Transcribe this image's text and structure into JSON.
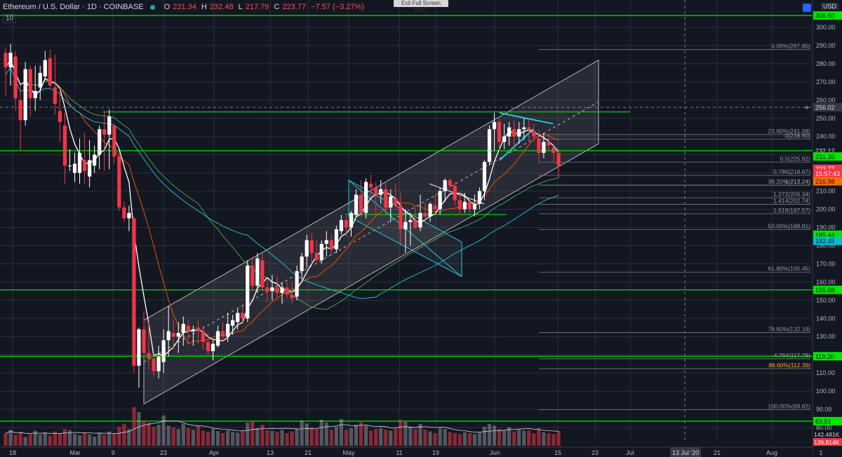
{
  "header": {
    "symbol": "Ethereum / U.S. Dollar",
    "interval": "1D",
    "exchange": "COINBASE",
    "o_label": "O",
    "o": "231.34",
    "h_label": "H",
    "h": "232.48",
    "l_label": "L",
    "l": "217.79",
    "c_label": "C",
    "c": "223.77",
    "change": "−7.57 (−3.27%)"
  },
  "indicator_label": "10",
  "exit_fullscreen": "Exit Full Screen (ESC)",
  "currency": "USD",
  "chart_data": {
    "type": "candlestick",
    "ylim": [
      78,
      312
    ],
    "volume_panel": true,
    "candles": [
      [
        286,
        289,
        262,
        278
      ],
      [
        278,
        291,
        268,
        286
      ],
      [
        284,
        287,
        254,
        261
      ],
      [
        260,
        268,
        232,
        249
      ],
      [
        249,
        281,
        246,
        277
      ],
      [
        277,
        279,
        251,
        261
      ],
      [
        261,
        279,
        254,
        265
      ],
      [
        267,
        279,
        260,
        275
      ],
      [
        273,
        287,
        271,
        282
      ],
      [
        283,
        288,
        266,
        268
      ],
      [
        267,
        285,
        252,
        258
      ],
      [
        254,
        267,
        237,
        248
      ],
      [
        246,
        253,
        214,
        224
      ],
      [
        224,
        233,
        221,
        224
      ],
      [
        220,
        231,
        215,
        225
      ],
      [
        220,
        239,
        214,
        231
      ],
      [
        227,
        242,
        214,
        221
      ],
      [
        218,
        238,
        212,
        227
      ],
      [
        224,
        235,
        220,
        230
      ],
      [
        230,
        246,
        222,
        244
      ],
      [
        244,
        254,
        221,
        241
      ],
      [
        241,
        255,
        222,
        251
      ],
      [
        246,
        247,
        225,
        229
      ],
      [
        229,
        232,
        199,
        201
      ],
      [
        201,
        204,
        193,
        195
      ],
      [
        195,
        202,
        188,
        198
      ],
      [
        195,
        196,
        110,
        114
      ],
      [
        114,
        135,
        102,
        134
      ],
      [
        134,
        144,
        119,
        121
      ],
      [
        121,
        139,
        112,
        118
      ],
      [
        118,
        120,
        108,
        111
      ],
      [
        111,
        125,
        107,
        119
      ],
      [
        116,
        134,
        110,
        128
      ],
      [
        128,
        147,
        119,
        133
      ],
      [
        132,
        139,
        123,
        130
      ],
      [
        130,
        138,
        121,
        132
      ],
      [
        132,
        141,
        125,
        137
      ],
      [
        136,
        139,
        126,
        133
      ],
      [
        133,
        136,
        125,
        134
      ],
      [
        135,
        139,
        126,
        133
      ],
      [
        133,
        136,
        123,
        127
      ],
      [
        127,
        133,
        120,
        122
      ],
      [
        122,
        128,
        117,
        126
      ],
      [
        125,
        136,
        124,
        133
      ],
      [
        133,
        138,
        127,
        130
      ],
      [
        130,
        143,
        127,
        137
      ],
      [
        136,
        142,
        131,
        139
      ],
      [
        138,
        145,
        134,
        143
      ],
      [
        143,
        148,
        137,
        140
      ],
      [
        140,
        172,
        138,
        169
      ],
      [
        169,
        174,
        155,
        158
      ],
      [
        158,
        176,
        154,
        173
      ],
      [
        172,
        176,
        155,
        157
      ],
      [
        157,
        161,
        149,
        155
      ],
      [
        155,
        164,
        150,
        157
      ],
      [
        157,
        163,
        151,
        154
      ],
      [
        154,
        160,
        148,
        157
      ],
      [
        157,
        160,
        151,
        153
      ],
      [
        153,
        160,
        148,
        151
      ],
      [
        152,
        169,
        150,
        166
      ],
      [
        166,
        176,
        162,
        174
      ],
      [
        174,
        186,
        168,
        183
      ],
      [
        183,
        187,
        170,
        176
      ],
      [
        176,
        183,
        170,
        172
      ],
      [
        172,
        183,
        170,
        181
      ],
      [
        181,
        188,
        174,
        183
      ],
      [
        183,
        186,
        175,
        178
      ],
      [
        178,
        191,
        176,
        189
      ],
      [
        188,
        197,
        186,
        194
      ],
      [
        194,
        196,
        185,
        190
      ],
      [
        190,
        199,
        185,
        198
      ],
      [
        197,
        211,
        196,
        208
      ],
      [
        208,
        216,
        196,
        198
      ],
      [
        198,
        217,
        195,
        215
      ],
      [
        214,
        219,
        207,
        212
      ],
      [
        212,
        215,
        197,
        208
      ],
      [
        208,
        216,
        203,
        211
      ],
      [
        211,
        215,
        197,
        201
      ],
      [
        201,
        211,
        193,
        207
      ],
      [
        206,
        214,
        200,
        202
      ],
      [
        202,
        209,
        180,
        189
      ],
      [
        189,
        200,
        176,
        193
      ],
      [
        193,
        198,
        180,
        194
      ],
      [
        194,
        201,
        189,
        190
      ],
      [
        190,
        208,
        188,
        198
      ],
      [
        198,
        204,
        193,
        196
      ],
      [
        196,
        204,
        193,
        203
      ],
      [
        202,
        208,
        197,
        200
      ],
      [
        200,
        212,
        197,
        210
      ],
      [
        210,
        217,
        204,
        216
      ],
      [
        216,
        217,
        209,
        213
      ],
      [
        213,
        215,
        202,
        205
      ],
      [
        205,
        209,
        197,
        200
      ],
      [
        200,
        209,
        198,
        204
      ],
      [
        204,
        206,
        198,
        200
      ],
      [
        200,
        208,
        196,
        203
      ],
      [
        203,
        212,
        200,
        210
      ],
      [
        210,
        227,
        205,
        226
      ],
      [
        226,
        246,
        224,
        244
      ],
      [
        244,
        253,
        232,
        248
      ],
      [
        248,
        250,
        232,
        237
      ],
      [
        237,
        247,
        233,
        240
      ],
      [
        240,
        248,
        235,
        245
      ],
      [
        244,
        249,
        233,
        240
      ],
      [
        240,
        248,
        236,
        244
      ],
      [
        244,
        250,
        238,
        245
      ],
      [
        245,
        249,
        237,
        244
      ],
      [
        243,
        247,
        237,
        240
      ],
      [
        239,
        244,
        226,
        231
      ],
      [
        231,
        242,
        228,
        237
      ],
      [
        237,
        241,
        232,
        235
      ],
      [
        234,
        236,
        226,
        231
      ],
      [
        231,
        232,
        217,
        224
      ]
    ],
    "volume": [
      0.3,
      0.38,
      0.26,
      0.33,
      0.21,
      0.28,
      0.36,
      0.27,
      0.32,
      0.24,
      0.34,
      0.3,
      0.4,
      0.37,
      0.28,
      0.25,
      0.31,
      0.27,
      0.22,
      0.3,
      0.26,
      0.34,
      0.3,
      0.45,
      0.52,
      0.4,
      0.92,
      0.8,
      0.6,
      0.55,
      0.45,
      0.5,
      0.72,
      0.48,
      0.44,
      0.4,
      0.52,
      0.42,
      0.38,
      0.47,
      0.36,
      0.33,
      0.4,
      0.35,
      0.3,
      0.37,
      0.33,
      0.31,
      0.36,
      0.55,
      0.58,
      0.42,
      0.5,
      0.37,
      0.35,
      0.33,
      0.38,
      0.3,
      0.34,
      0.41,
      0.6,
      0.53,
      0.44,
      0.4,
      0.62,
      0.55,
      0.38,
      0.45,
      0.64,
      0.38,
      0.42,
      0.5,
      0.56,
      0.48,
      0.36,
      0.4,
      0.42,
      0.38,
      0.36,
      0.41,
      0.62,
      0.57,
      0.45,
      0.4,
      0.52,
      0.38,
      0.34,
      0.3,
      0.42,
      0.4,
      0.33,
      0.3,
      0.28,
      0.32,
      0.3,
      0.28,
      0.31,
      0.45,
      0.52,
      0.48,
      0.4,
      0.36,
      0.44,
      0.34,
      0.38,
      0.36,
      0.37,
      0.3,
      0.42,
      0.32,
      0.3,
      0.28,
      0.36
    ],
    "hlines": [
      {
        "price": 306.5,
        "color": "#00e600",
        "x0": 0
      },
      {
        "price": 253.5,
        "color": "#00e600",
        "x0": 147,
        "x1": 898
      },
      {
        "price": 232.2,
        "color": "#00e600",
        "x0": 0
      },
      {
        "price": 155.68,
        "color": "#00e600",
        "x0": 0
      },
      {
        "price": 119.2,
        "color": "#00e600",
        "x0": 0
      },
      {
        "price": 83.51,
        "color": "#00e600",
        "x0": 0
      },
      {
        "price": 197.1,
        "color": "#00e600",
        "x0": 492,
        "x1": 722
      }
    ],
    "fib_levels": [
      {
        "label": "0.00%(287.80)",
        "price": 287.8,
        "color": "#9598a1"
      },
      {
        "label": "23.60%(241.08)",
        "price": 241.08,
        "color": "#9598a1"
      },
      {
        "label": "0(238.60)",
        "price": 238.6,
        "color": "#9598a1"
      },
      {
        "label": "0.5(225.92)",
        "price": 225.92,
        "color": "#9598a1"
      },
      {
        "label": "0.786(218.67)",
        "price": 218.67,
        "color": "#9598a1"
      },
      {
        "label": "38.20%(213.24)",
        "price": 213.24,
        "color": "#9598a1"
      },
      {
        "label": "1(213.24)",
        "price": 213.24,
        "color": "#9598a1"
      },
      {
        "label": "1.272(206.34)",
        "price": 206.34,
        "color": "#9598a1"
      },
      {
        "label": "1.414(202.74)",
        "price": 202.74,
        "color": "#9598a1"
      },
      {
        "label": "1.618(197.57)",
        "price": 197.57,
        "color": "#9598a1"
      },
      {
        "label": "50.00%(188.81)",
        "price": 188.81,
        "color": "#9598a1"
      },
      {
        "label": "61.80%(165.45)",
        "price": 165.45,
        "color": "#9598a1"
      },
      {
        "label": "78.60%(132.19)",
        "price": 132.19,
        "color": "#9598a1"
      },
      {
        "label": "4.764(117.78)",
        "price": 117.78,
        "color": "#9598a1"
      },
      {
        "label": "88.60%(112.39)",
        "price": 112.39,
        "color": "#f9a825"
      },
      {
        "label": "100.00%(89.82)",
        "price": 89.82,
        "color": "#9598a1"
      }
    ],
    "y_ticks": [
      300,
      290,
      280,
      270,
      260,
      250,
      240,
      230,
      220,
      210,
      200,
      190,
      180,
      170,
      160,
      150,
      140,
      130,
      120,
      110,
      100,
      90,
      80
    ],
    "price_badges": [
      {
        "label": "306.50",
        "price": 306.5,
        "bg": "#00e600",
        "fg": "#131722"
      },
      {
        "label": "256.02",
        "price": 256.02,
        "bg": "#363a45",
        "fg": "#d1d4dc"
      },
      {
        "label": "232.12",
        "price": 232.12,
        "bg": "#131722",
        "fg": "#d1d4dc"
      },
      {
        "label": "231.36",
        "price": 229.0,
        "bg": "#00e600",
        "fg": "#131722"
      },
      {
        "label": "223.77",
        "price": 222.3,
        "bg": "#f23645",
        "fg": "#ffffff"
      },
      {
        "label": "15:57:43",
        "price": 219.7,
        "bg": "#f23645",
        "fg": "#ffffff"
      },
      {
        "label": "216.98",
        "price": 215.4,
        "bg": "#ff6d00",
        "fg": "#131722"
      },
      {
        "label": "185.44",
        "price": 186.0,
        "bg": "#00e600",
        "fg": "#131722"
      },
      {
        "label": "182.45",
        "price": 182.6,
        "bg": "#00bcd4",
        "fg": "#131722"
      },
      {
        "label": "155.68",
        "price": 155.68,
        "bg": "#00e600",
        "fg": "#131722"
      },
      {
        "label": "119.20",
        "price": 119.2,
        "bg": "#00e600",
        "fg": "#131722"
      },
      {
        "label": "83.51",
        "price": 83.51,
        "bg": "#00e600",
        "fg": "#131722"
      }
    ],
    "volume_badges": [
      {
        "label": "142.481K",
        "bg": "#131722",
        "fg": "#d1d4dc"
      },
      {
        "label": "136.814K",
        "bg": "#f23645",
        "fg": "#ffffff"
      }
    ],
    "x_ticks": [
      "18",
      "Mar",
      "9",
      "23",
      "Apr",
      "13",
      "21",
      "May",
      "11",
      "19",
      "Jun",
      "15",
      "23",
      "Jul",
      "21",
      "Aug",
      "1"
    ],
    "x_cursor_label": "13 Jul '20",
    "colors": {
      "up": "#ffffff",
      "down": "#f23645",
      "grid": "#2a2e39",
      "ma_fast": "#ffffff",
      "ma_orange": "#e65100",
      "ma_green": "#4caf50",
      "ma_blue": "#26c6da"
    }
  }
}
